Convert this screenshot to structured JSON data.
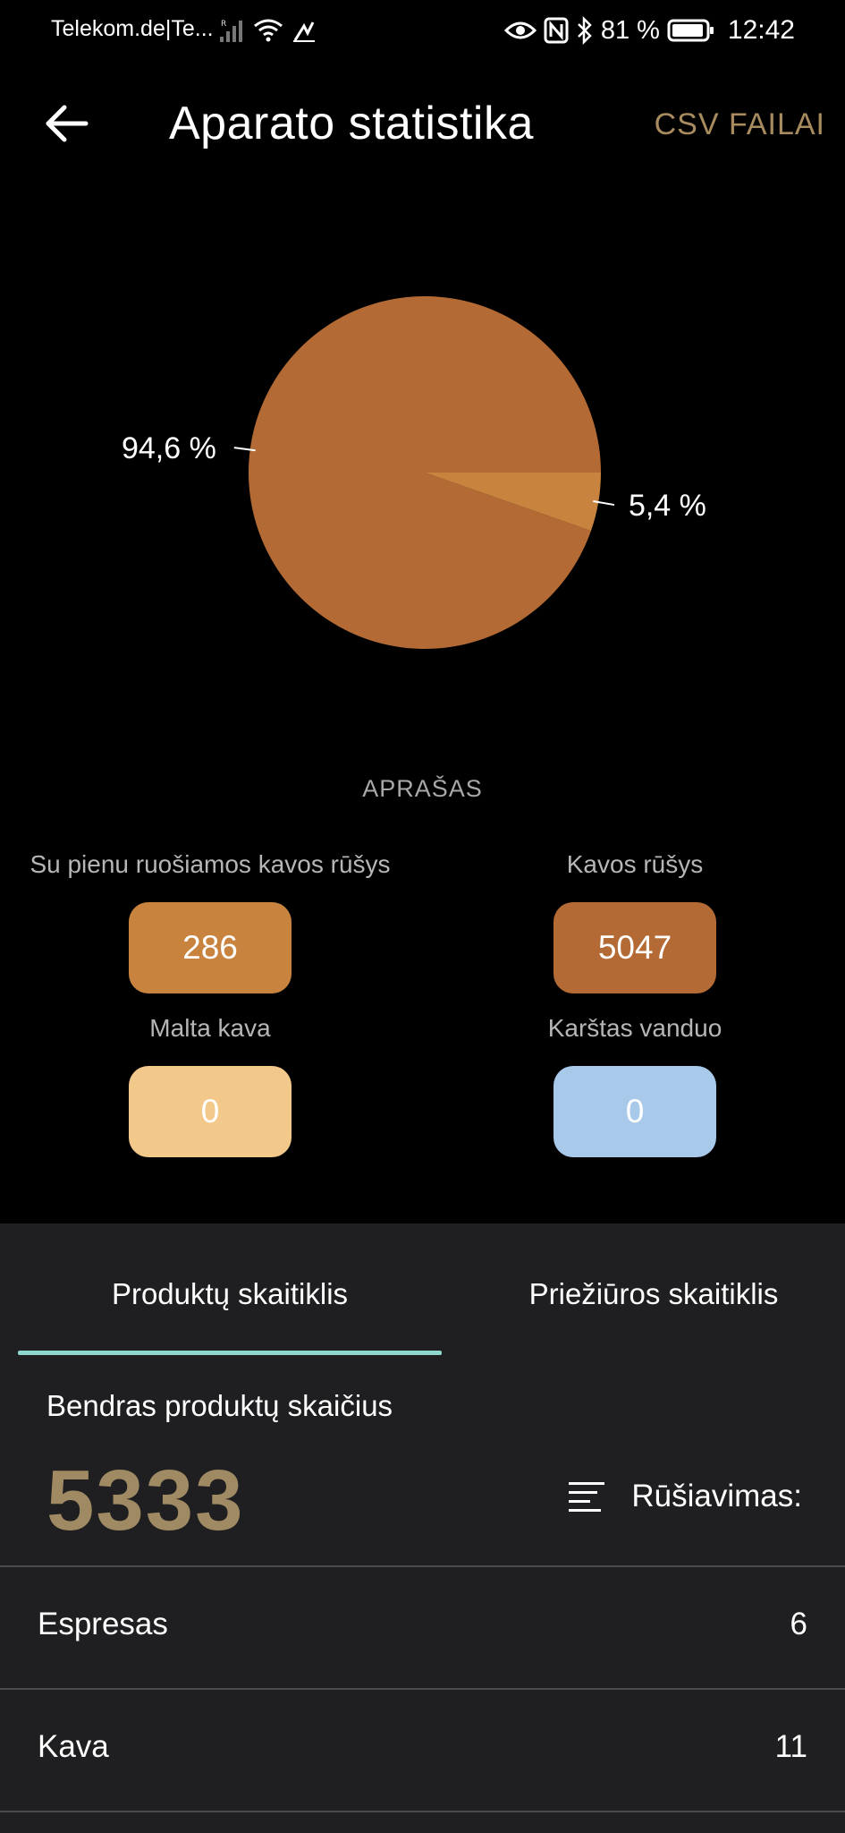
{
  "status_bar": {
    "carrier": "Telekom.de|Te...",
    "battery": "81 %",
    "time": "12:42"
  },
  "header": {
    "title": "Aparato statistika",
    "csv_button": "CSV FAILAI"
  },
  "chart_data": {
    "type": "pie",
    "slices": [
      {
        "label": "Kavos rūšys",
        "percent_label": "94,6 %",
        "value": 5047,
        "color": "#b36a34"
      },
      {
        "label": "Su pienu ruošiamos kavos rūšys",
        "percent_label": "5,4 %",
        "value": 286,
        "color": "#c8843f"
      }
    ]
  },
  "legend": {
    "title": "APRAŠAS",
    "items": [
      {
        "label": "Su pienu ruošiamos kavos rūšys",
        "value": "286",
        "color": "#c8843f"
      },
      {
        "label": "Kavos rūšys",
        "value": "5047",
        "color": "#b36a34"
      },
      {
        "label": "Malta kava",
        "value": "0",
        "color": "#f3c88b"
      },
      {
        "label": "Karštas vanduo",
        "value": "0",
        "color": "#a8c9ea"
      }
    ]
  },
  "tabs": {
    "items": [
      {
        "label": "Produktų skaitiklis",
        "active": true
      },
      {
        "label": "Priežiūros skaitiklis",
        "active": false
      }
    ]
  },
  "counter": {
    "total_label": "Bendras produktų skaičius",
    "total_value": "5333",
    "sort_label": "Rūšiavimas:"
  },
  "products": [
    {
      "name": "Espresas",
      "count": "6"
    },
    {
      "name": "Kava",
      "count": "11"
    }
  ],
  "colors": {
    "accent_gold": "#9f8a63",
    "tab_indicator": "#8fd6cc",
    "panel_bg": "#1f1f21"
  }
}
